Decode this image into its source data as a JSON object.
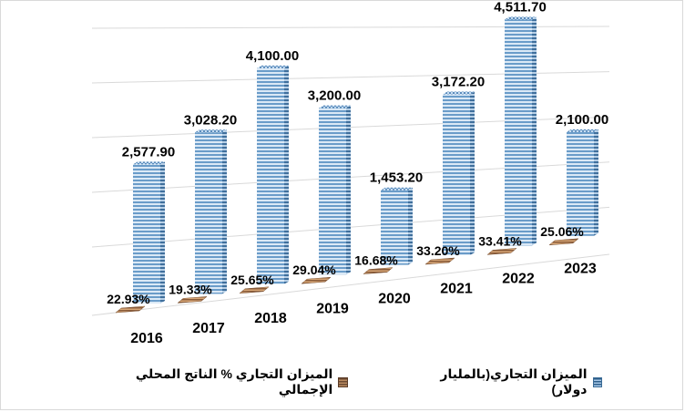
{
  "chart_data": {
    "type": "bar",
    "categories": [
      "2016",
      "2017",
      "2018",
      "2019",
      "2020",
      "2021",
      "2022",
      "2023"
    ],
    "series": [
      {
        "name": "الميزان التجاري(بالمليار دولار)",
        "values": [
          2577.9,
          3028.2,
          4100.0,
          3200.0,
          1453.2,
          3172.2,
          4511.7,
          2100.0
        ],
        "labels": [
          "2,577.90",
          "3,028.20",
          "4,100.00",
          "3,200.00",
          "1,453.20",
          "3,172.20",
          "4,511.70",
          "2,100.00"
        ],
        "color": "#a7c7e7"
      },
      {
        "name": "الميزان التجاري % الناتج المحلي الإجمالي",
        "values": [
          22.93,
          19.33,
          25.65,
          29.04,
          16.68,
          33.2,
          33.41,
          25.06
        ],
        "labels": [
          "22.93%",
          "19.33%",
          "25.65%",
          "29.04%",
          "16.68%",
          "33.20%",
          "33.41%",
          "25.06%"
        ],
        "color": "#b98a60"
      }
    ],
    "ylim": [
      0,
      5000
    ],
    "grid": true,
    "legend_position": "bottom",
    "style": "3d"
  }
}
